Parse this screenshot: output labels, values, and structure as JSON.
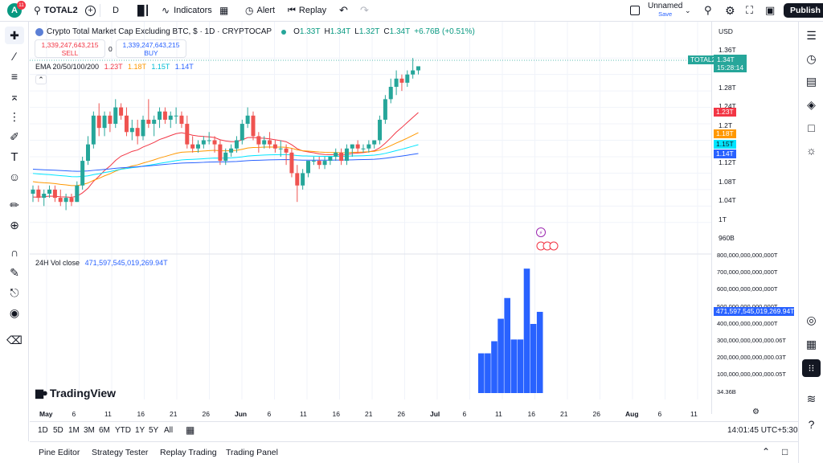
{
  "topbar": {
    "avatar_letter": "A",
    "avatar_badge": "11",
    "symbol": "TOTAL2",
    "interval": "D",
    "indicators": "Indicators",
    "alert": "Alert",
    "replay": "Replay",
    "layout_name": "Unnamed",
    "layout_save": "Save",
    "publish": "Publish"
  },
  "legend": {
    "title": "Crypto Total Market Cap Excluding BTC, $ · 1D · CRYPTOCAP",
    "o_label": "O",
    "o": "1.33T",
    "h_label": "H",
    "h": "1.34T",
    "l_label": "L",
    "l": "1.32T",
    "c_label": "C",
    "c": "1.34T",
    "change": "+6.76B (+0.51%)",
    "sell_price": "1,339,247,643,215",
    "sell": "SELL",
    "spread": "0",
    "buy_price": "1,339,247,643,215",
    "buy": "BUY",
    "ema_label": "EMA 20/50/100/200",
    "ema1": "1.23T",
    "ema2": "1.18T",
    "ema3": "1.15T",
    "ema4": "1.14T",
    "vol_label": "24H Vol close",
    "vol_value": "471,597,545,019,269.94T",
    "watermark": "TradingView"
  },
  "price_scale": {
    "currency": "USD",
    "labels": [
      "1.36T",
      "1.32T",
      "1.28T",
      "1.24T",
      "1.2T",
      "1.16T",
      "1.12T",
      "1.08T",
      "1.04T",
      "1T",
      "960B"
    ],
    "symbol_tag": "TOTAL2",
    "last_price": "1.34T",
    "countdown": "15:28:14",
    "ema_tags": [
      "1.23T",
      "1.18T",
      "1.15T",
      "1.14T"
    ],
    "vol_labels": [
      "800,000,000,000,000T",
      "700,000,000,000,000T",
      "600,000,000,000,000T",
      "500,000,000,000,000T",
      "400,000,000,000,000T",
      "300,000,000,000,000.06T",
      "200,000,000,000,000.03T",
      "100,000,000,000,000.05T",
      "34.36B"
    ],
    "vol_tag": "471,597,545,019,269.94T"
  },
  "time_axis": [
    "May",
    "6",
    "11",
    "16",
    "21",
    "26",
    "Jun",
    "6",
    "11",
    "16",
    "21",
    "26",
    "Jul",
    "6",
    "11",
    "16",
    "21",
    "26",
    "Aug",
    "6",
    "11"
  ],
  "bottombar": {
    "ranges": [
      "1D",
      "5D",
      "1M",
      "3M",
      "6M",
      "YTD",
      "1Y",
      "5Y",
      "All"
    ],
    "clock": "14:01:45 UTC+5:30"
  },
  "panelbar": {
    "tabs": [
      "Pine Editor",
      "Strategy Tester",
      "Replay Trading",
      "Trading Panel"
    ]
  },
  "colors": {
    "up": "#26a69a",
    "down": "#ef5350",
    "ema20": "#f23645",
    "ema50": "#ff9800",
    "ema100": "#00e5ff",
    "ema200": "#2962ff",
    "volume": "#2962ff"
  },
  "chart_data": {
    "type": "candlestick",
    "title": "Crypto Total Market Cap Excluding BTC, $ · 1D · CRYPTOCAP",
    "ylim": [
      0.94,
      1.38
    ],
    "candles": [
      [
        1.03,
        1.05,
        1.01,
        1.04
      ],
      [
        1.04,
        1.05,
        1.01,
        1.02
      ],
      [
        1.02,
        1.04,
        1.0,
        1.03
      ],
      [
        1.03,
        1.05,
        1.02,
        1.04
      ],
      [
        1.04,
        1.05,
        1.01,
        1.02
      ],
      [
        1.02,
        1.04,
        1.0,
        1.01
      ],
      [
        1.01,
        1.03,
        0.99,
        1.02
      ],
      [
        1.02,
        1.03,
        1.0,
        1.01
      ],
      [
        1.01,
        1.06,
        1.01,
        1.05
      ],
      [
        1.05,
        1.12,
        1.04,
        1.11
      ],
      [
        1.11,
        1.17,
        1.1,
        1.15
      ],
      [
        1.15,
        1.23,
        1.14,
        1.22
      ],
      [
        1.22,
        1.25,
        1.17,
        1.19
      ],
      [
        1.19,
        1.23,
        1.17,
        1.22
      ],
      [
        1.22,
        1.23,
        1.18,
        1.2
      ],
      [
        1.2,
        1.26,
        1.19,
        1.24
      ],
      [
        1.24,
        1.25,
        1.21,
        1.22
      ],
      [
        1.22,
        1.24,
        1.17,
        1.18
      ],
      [
        1.18,
        1.21,
        1.16,
        1.19
      ],
      [
        1.19,
        1.21,
        1.15,
        1.17
      ],
      [
        1.17,
        1.22,
        1.16,
        1.21
      ],
      [
        1.21,
        1.26,
        1.19,
        1.2
      ],
      [
        1.2,
        1.22,
        1.17,
        1.21
      ],
      [
        1.21,
        1.24,
        1.19,
        1.23
      ],
      [
        1.23,
        1.24,
        1.2,
        1.21
      ],
      [
        1.21,
        1.23,
        1.19,
        1.22
      ],
      [
        1.22,
        1.24,
        1.2,
        1.22
      ],
      [
        1.22,
        1.23,
        1.19,
        1.2
      ],
      [
        1.2,
        1.22,
        1.14,
        1.15
      ],
      [
        1.15,
        1.17,
        1.13,
        1.14
      ],
      [
        1.14,
        1.16,
        1.13,
        1.15
      ],
      [
        1.15,
        1.17,
        1.14,
        1.16
      ],
      [
        1.16,
        1.18,
        1.15,
        1.16
      ],
      [
        1.16,
        1.17,
        1.13,
        1.15
      ],
      [
        1.15,
        1.16,
        1.1,
        1.11
      ],
      [
        1.11,
        1.14,
        1.1,
        1.13
      ],
      [
        1.13,
        1.15,
        1.12,
        1.14
      ],
      [
        1.14,
        1.17,
        1.13,
        1.16
      ],
      [
        1.16,
        1.21,
        1.15,
        1.2
      ],
      [
        1.2,
        1.24,
        1.19,
        1.22
      ],
      [
        1.22,
        1.23,
        1.16,
        1.17
      ],
      [
        1.17,
        1.18,
        1.13,
        1.15
      ],
      [
        1.15,
        1.17,
        1.14,
        1.16
      ],
      [
        1.16,
        1.18,
        1.14,
        1.15
      ],
      [
        1.15,
        1.16,
        1.13,
        1.14
      ],
      [
        1.14,
        1.16,
        1.12,
        1.14
      ],
      [
        1.14,
        1.15,
        1.1,
        1.13
      ],
      [
        1.13,
        1.14,
        1.07,
        1.08
      ],
      [
        1.08,
        1.1,
        1.01,
        1.05
      ],
      [
        1.05,
        1.09,
        1.04,
        1.08
      ],
      [
        1.08,
        1.11,
        1.07,
        1.11
      ],
      [
        1.11,
        1.12,
        1.1,
        1.11
      ],
      [
        1.11,
        1.12,
        1.09,
        1.1
      ],
      [
        1.1,
        1.12,
        1.09,
        1.11
      ],
      [
        1.11,
        1.12,
        1.1,
        1.12
      ],
      [
        1.12,
        1.14,
        1.11,
        1.13
      ],
      [
        1.13,
        1.14,
        1.1,
        1.11
      ],
      [
        1.11,
        1.15,
        1.1,
        1.14
      ],
      [
        1.14,
        1.15,
        1.12,
        1.15
      ],
      [
        1.15,
        1.16,
        1.13,
        1.14
      ],
      [
        1.14,
        1.15,
        1.13,
        1.14
      ],
      [
        1.14,
        1.16,
        1.13,
        1.15
      ],
      [
        1.15,
        1.16,
        1.14,
        1.16
      ],
      [
        1.16,
        1.22,
        1.15,
        1.21
      ],
      [
        1.21,
        1.27,
        1.2,
        1.26
      ],
      [
        1.26,
        1.31,
        1.25,
        1.29
      ],
      [
        1.29,
        1.33,
        1.27,
        1.31
      ],
      [
        1.31,
        1.32,
        1.28,
        1.3
      ],
      [
        1.3,
        1.33,
        1.29,
        1.32
      ],
      [
        1.32,
        1.36,
        1.31,
        1.33
      ],
      [
        1.33,
        1.34,
        1.32,
        1.34
      ]
    ],
    "ema": [
      {
        "name": "EMA 20",
        "last": 1.23
      },
      {
        "name": "EMA 50",
        "last": 1.18
      },
      {
        "name": "EMA 100",
        "last": 1.15
      },
      {
        "name": "EMA 200",
        "last": 1.14
      }
    ],
    "volume": {
      "label": "24H Vol close",
      "ylim": [
        0,
        800000000000000
      ],
      "values": [
        230000000000000,
        230000000000000,
        300000000000000,
        430000000000000,
        550000000000000,
        310000000000000,
        310000000000000,
        720000000000000,
        400000000000000,
        470000000000000
      ]
    }
  }
}
